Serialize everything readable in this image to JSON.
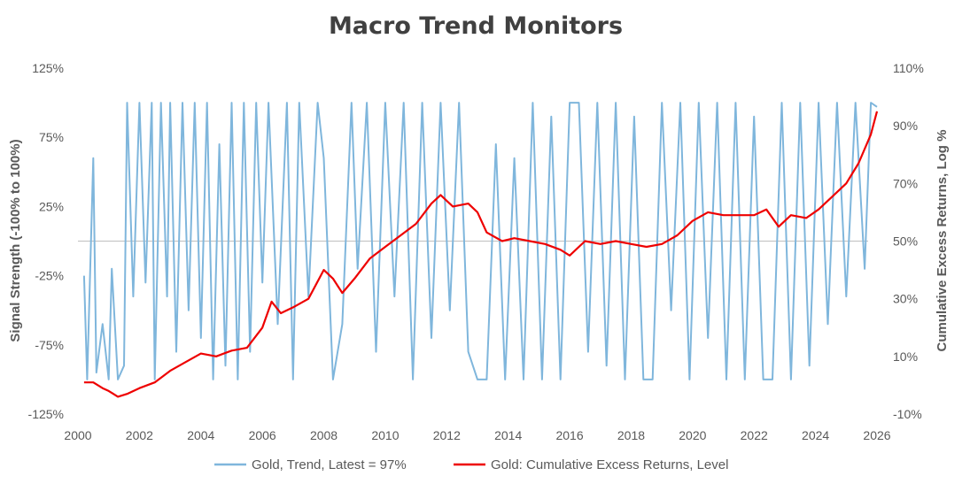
{
  "chart_data": {
    "type": "line",
    "title": "Macro Trend Monitors",
    "xlim": [
      2000,
      2026
    ],
    "x_ticks": [
      "2000",
      "2002",
      "2004",
      "2006",
      "2008",
      "2010",
      "2012",
      "2014",
      "2016",
      "2018",
      "2020",
      "2022",
      "2024",
      "2026"
    ],
    "y_left": {
      "label": "Signal Strength (-100% to 100%)",
      "range": [
        -125,
        125
      ],
      "ticks": [
        "125%",
        "75%",
        "25%",
        "-25%",
        "-75%",
        "-125%"
      ]
    },
    "y_right": {
      "label": "Cumulative Excess Returns, Log %",
      "range": [
        -10,
        110
      ],
      "ticks": [
        "110%",
        "90%",
        "70%",
        "50%",
        "30%",
        "10%",
        "-10%"
      ]
    },
    "series": [
      {
        "name": "Gold, Trend, Latest = 97%",
        "axis": "left",
        "color": "#7fb6dc",
        "latest": 97,
        "points": [
          [
            2000.2,
            -25
          ],
          [
            2000.3,
            -100
          ],
          [
            2000.5,
            60
          ],
          [
            2000.6,
            -95
          ],
          [
            2000.8,
            -60
          ],
          [
            2001.0,
            -100
          ],
          [
            2001.1,
            -20
          ],
          [
            2001.3,
            -100
          ],
          [
            2001.5,
            -90
          ],
          [
            2001.6,
            100
          ],
          [
            2001.8,
            -40
          ],
          [
            2002.0,
            100
          ],
          [
            2002.2,
            -30
          ],
          [
            2002.4,
            100
          ],
          [
            2002.5,
            -100
          ],
          [
            2002.7,
            100
          ],
          [
            2002.9,
            -40
          ],
          [
            2003.0,
            100
          ],
          [
            2003.2,
            -80
          ],
          [
            2003.4,
            100
          ],
          [
            2003.6,
            -50
          ],
          [
            2003.8,
            100
          ],
          [
            2004.0,
            -70
          ],
          [
            2004.2,
            100
          ],
          [
            2004.4,
            -100
          ],
          [
            2004.6,
            70
          ],
          [
            2004.8,
            -90
          ],
          [
            2005.0,
            100
          ],
          [
            2005.2,
            -100
          ],
          [
            2005.4,
            100
          ],
          [
            2005.6,
            -80
          ],
          [
            2005.8,
            100
          ],
          [
            2006.0,
            -30
          ],
          [
            2006.2,
            100
          ],
          [
            2006.5,
            -60
          ],
          [
            2006.8,
            100
          ],
          [
            2007.0,
            -100
          ],
          [
            2007.2,
            100
          ],
          [
            2007.5,
            -40
          ],
          [
            2007.8,
            100
          ],
          [
            2008.0,
            60
          ],
          [
            2008.3,
            -100
          ],
          [
            2008.6,
            -60
          ],
          [
            2008.9,
            100
          ],
          [
            2009.1,
            -20
          ],
          [
            2009.4,
            100
          ],
          [
            2009.7,
            -80
          ],
          [
            2010.0,
            100
          ],
          [
            2010.3,
            -40
          ],
          [
            2010.6,
            100
          ],
          [
            2010.9,
            -100
          ],
          [
            2011.2,
            100
          ],
          [
            2011.5,
            -70
          ],
          [
            2011.8,
            100
          ],
          [
            2012.1,
            -50
          ],
          [
            2012.4,
            100
          ],
          [
            2012.7,
            -80
          ],
          [
            2013.0,
            -100
          ],
          [
            2013.3,
            -100
          ],
          [
            2013.6,
            70
          ],
          [
            2013.9,
            -100
          ],
          [
            2014.2,
            60
          ],
          [
            2014.5,
            -100
          ],
          [
            2014.8,
            100
          ],
          [
            2015.1,
            -100
          ],
          [
            2015.4,
            90
          ],
          [
            2015.7,
            -100
          ],
          [
            2016.0,
            100
          ],
          [
            2016.3,
            100
          ],
          [
            2016.6,
            -80
          ],
          [
            2016.9,
            100
          ],
          [
            2017.2,
            -90
          ],
          [
            2017.5,
            100
          ],
          [
            2017.8,
            -100
          ],
          [
            2018.1,
            90
          ],
          [
            2018.4,
            -100
          ],
          [
            2018.7,
            -100
          ],
          [
            2019.0,
            100
          ],
          [
            2019.3,
            -50
          ],
          [
            2019.6,
            100
          ],
          [
            2019.9,
            -100
          ],
          [
            2020.2,
            100
          ],
          [
            2020.5,
            -70
          ],
          [
            2020.8,
            100
          ],
          [
            2021.1,
            -100
          ],
          [
            2021.4,
            100
          ],
          [
            2021.7,
            -100
          ],
          [
            2022.0,
            90
          ],
          [
            2022.3,
            -100
          ],
          [
            2022.6,
            -100
          ],
          [
            2022.9,
            100
          ],
          [
            2023.2,
            -100
          ],
          [
            2023.5,
            100
          ],
          [
            2023.8,
            -90
          ],
          [
            2024.1,
            100
          ],
          [
            2024.4,
            -60
          ],
          [
            2024.7,
            100
          ],
          [
            2025.0,
            -40
          ],
          [
            2025.3,
            100
          ],
          [
            2025.6,
            -20
          ],
          [
            2025.8,
            100
          ],
          [
            2026.0,
            97
          ]
        ]
      },
      {
        "name": "Gold: Cumulative Excess Returns, Level",
        "axis": "right",
        "color": "#ee0000",
        "points": [
          [
            2000.2,
            1
          ],
          [
            2000.5,
            1
          ],
          [
            2000.8,
            -1
          ],
          [
            2001.0,
            -2
          ],
          [
            2001.3,
            -4
          ],
          [
            2001.6,
            -3
          ],
          [
            2002.0,
            -1
          ],
          [
            2002.5,
            1
          ],
          [
            2003.0,
            5
          ],
          [
            2003.5,
            8
          ],
          [
            2004.0,
            11
          ],
          [
            2004.5,
            10
          ],
          [
            2005.0,
            12
          ],
          [
            2005.5,
            13
          ],
          [
            2006.0,
            20
          ],
          [
            2006.3,
            29
          ],
          [
            2006.6,
            25
          ],
          [
            2007.0,
            27
          ],
          [
            2007.5,
            30
          ],
          [
            2008.0,
            40
          ],
          [
            2008.3,
            37
          ],
          [
            2008.6,
            32
          ],
          [
            2009.0,
            37
          ],
          [
            2009.5,
            44
          ],
          [
            2010.0,
            48
          ],
          [
            2010.5,
            52
          ],
          [
            2011.0,
            56
          ],
          [
            2011.5,
            63
          ],
          [
            2011.8,
            66
          ],
          [
            2012.2,
            62
          ],
          [
            2012.7,
            63
          ],
          [
            2013.0,
            60
          ],
          [
            2013.3,
            53
          ],
          [
            2013.8,
            50
          ],
          [
            2014.2,
            51
          ],
          [
            2014.7,
            50
          ],
          [
            2015.2,
            49
          ],
          [
            2015.7,
            47
          ],
          [
            2016.0,
            45
          ],
          [
            2016.5,
            50
          ],
          [
            2017.0,
            49
          ],
          [
            2017.5,
            50
          ],
          [
            2018.0,
            49
          ],
          [
            2018.5,
            48
          ],
          [
            2019.0,
            49
          ],
          [
            2019.5,
            52
          ],
          [
            2020.0,
            57
          ],
          [
            2020.5,
            60
          ],
          [
            2021.0,
            59
          ],
          [
            2021.5,
            59
          ],
          [
            2022.0,
            59
          ],
          [
            2022.4,
            61
          ],
          [
            2022.8,
            55
          ],
          [
            2023.2,
            59
          ],
          [
            2023.7,
            58
          ],
          [
            2024.1,
            61
          ],
          [
            2024.6,
            66
          ],
          [
            2025.0,
            70
          ],
          [
            2025.4,
            77
          ],
          [
            2025.8,
            87
          ],
          [
            2026.0,
            95
          ]
        ]
      }
    ],
    "zero_line": 0,
    "grid": false,
    "legend_position": "bottom"
  }
}
